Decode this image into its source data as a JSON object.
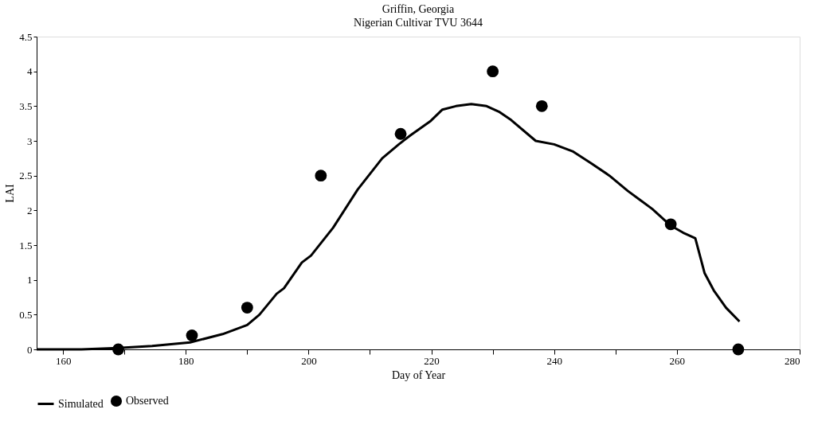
{
  "chart_data": {
    "type": "line",
    "title": "Griffin, Georgia",
    "subtitle": "Nigerian Cultivar TVU 3644",
    "xlabel": "Day of Year",
    "ylabel": "LAI",
    "xlim": [
      155.7,
      280
    ],
    "xticks": [
      160,
      {
        "value": 170,
        "label": null
      },
      180,
      {
        "value": 190,
        "label": null
      },
      200,
      {
        "value": 210,
        "label": null
      },
      220,
      {
        "value": 230,
        "label": null
      },
      240,
      {
        "value": 250,
        "label": null
      },
      260,
      {
        "value": 270,
        "label": null
      },
      280
    ],
    "ylim": [
      0,
      4.5
    ],
    "yticks": [
      0,
      0.5,
      1,
      1.5,
      2,
      2.5,
      3,
      3.5,
      4,
      4.5
    ],
    "grid": false,
    "legend": "bottom",
    "series": [
      {
        "name": "Simulated",
        "color": "#000000",
        "marker": "none",
        "line_style": "solid",
        "x": [
          155.7,
          159,
          163,
          169,
          174.5,
          180.7,
          186,
          190,
          192,
          194.8,
          196,
          198.9,
          200.4,
          204,
          208,
          212,
          214.7,
          216.6,
          219.8,
          221.8,
          224,
          226.5,
          229,
          231,
          233,
          237,
          240,
          243,
          246,
          249,
          252,
          254,
          256,
          259,
          261,
          263,
          264.5,
          266,
          268,
          270.2
        ],
        "values": [
          0,
          0,
          0,
          0.02,
          0.05,
          0.1,
          0.22,
          0.35,
          0.5,
          0.8,
          0.88,
          1.25,
          1.35,
          1.75,
          2.3,
          2.75,
          2.95,
          3.08,
          3.28,
          3.45,
          3.5,
          3.53,
          3.5,
          3.42,
          3.3,
          3.0,
          2.95,
          2.85,
          2.68,
          2.5,
          2.28,
          2.15,
          2.02,
          1.78,
          1.68,
          1.6,
          1.1,
          0.85,
          0.6,
          0.4
        ]
      },
      {
        "name": "Observed",
        "type": "scatter",
        "color": "#000000",
        "marker": "circle",
        "x": [
          169,
          181,
          190,
          202,
          215,
          230,
          238,
          259,
          270
        ],
        "values": [
          0,
          0.2,
          0.6,
          2.5,
          3.1,
          4.0,
          3.5,
          1.8,
          0
        ]
      }
    ]
  }
}
